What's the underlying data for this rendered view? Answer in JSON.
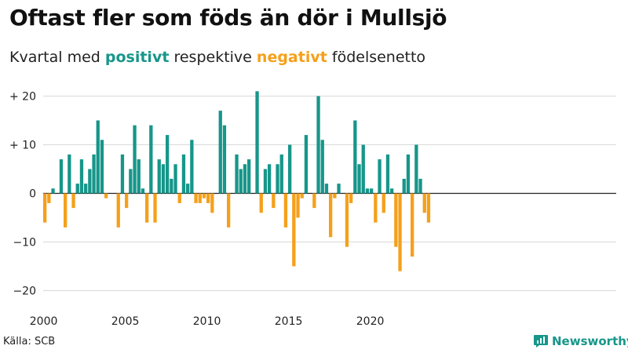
{
  "title": "Oftast fler som föds än dör i Mullsjö",
  "subtitle": {
    "prefix": "Kvartal med",
    "positive_word": "positivt",
    "middle": "respektive",
    "negative_word": "negativt",
    "suffix": "födelsenetto"
  },
  "source": "Källa: SCB",
  "brand": "Newsworthy",
  "colors": {
    "positive": "#17968a",
    "negative": "#f5a01a",
    "grid": "#d9d9d9",
    "axis": "#222222"
  },
  "chart_data": {
    "type": "bar",
    "title": "Oftast fler som föds än dör i Mullsjö",
    "xlabel": "",
    "ylabel": "",
    "ylim": [
      -22,
      22
    ],
    "y_ticks": [
      {
        "value": 20,
        "label": "+ 20"
      },
      {
        "value": 10,
        "label": "+ 10"
      },
      {
        "value": 0,
        "label": "0"
      },
      {
        "value": -10,
        "label": "−10"
      },
      {
        "value": -20,
        "label": "−20"
      }
    ],
    "x_ticks": [
      {
        "index": 0,
        "label": "2000"
      },
      {
        "index": 20,
        "label": "2005"
      },
      {
        "index": 40,
        "label": "2010"
      },
      {
        "index": 60,
        "label": "2015"
      },
      {
        "index": 80,
        "label": "2020"
      }
    ],
    "start_year": 2000,
    "values": [
      -6,
      -2,
      1,
      0,
      7,
      -7,
      8,
      -3,
      2,
      7,
      2,
      5,
      8,
      15,
      11,
      -1,
      0,
      0,
      -7,
      8,
      -3,
      5,
      14,
      7,
      1,
      -6,
      14,
      -6,
      7,
      6,
      12,
      3,
      6,
      -2,
      8,
      2,
      11,
      -2,
      -2,
      -1,
      -2,
      -4,
      0,
      17,
      14,
      -7,
      0,
      8,
      5,
      6,
      7,
      0,
      21,
      -4,
      5,
      6,
      -3,
      6,
      8,
      -7,
      10,
      -15,
      -5,
      -1,
      12,
      0,
      -3,
      20,
      11,
      2,
      -9,
      -1,
      2,
      0,
      -11,
      -2,
      15,
      6,
      10,
      1,
      1,
      -6,
      7,
      -4,
      8,
      1,
      -11,
      -16,
      3,
      8,
      -13,
      10,
      3,
      -4,
      -6
    ]
  }
}
